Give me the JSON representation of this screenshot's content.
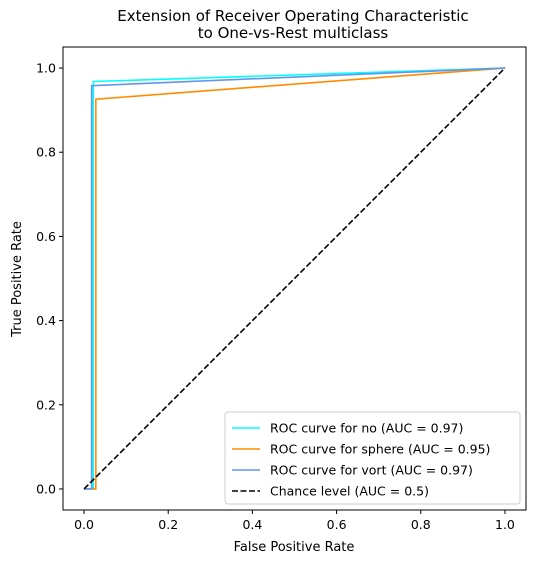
{
  "chart_data": {
    "type": "line",
    "title_line1": "Extension of Receiver Operating Characteristic",
    "title_line2": "to One-vs-Rest multiclass",
    "xlabel": "False Positive Rate",
    "ylabel": "True Positive Rate",
    "xlim": [
      -0.05,
      1.05
    ],
    "ylim": [
      -0.05,
      1.05
    ],
    "xticks": [
      0.0,
      0.2,
      0.4,
      0.6,
      0.8,
      1.0
    ],
    "yticks": [
      0.0,
      0.2,
      0.4,
      0.6,
      0.8,
      1.0
    ],
    "xtick_labels": [
      "0.0",
      "0.2",
      "0.4",
      "0.6",
      "0.8",
      "1.0"
    ],
    "ytick_labels": [
      "0.0",
      "0.2",
      "0.4",
      "0.6",
      "0.8",
      "1.0"
    ],
    "grid": false,
    "legend_position": "lower-right",
    "series": [
      {
        "name": "ROC curve for no (AUC = 0.97)",
        "color": "#00ffff",
        "dash": "solid",
        "x": [
          0.0,
          0.022,
          0.022,
          1.0
        ],
        "y": [
          0.0,
          0.0,
          0.968,
          1.0
        ]
      },
      {
        "name": "ROC curve for sphere (AUC = 0.95)",
        "color": "#ff8c00",
        "dash": "solid",
        "x": [
          0.0,
          0.028,
          0.028,
          1.0
        ],
        "y": [
          0.0,
          0.0,
          0.926,
          1.0
        ]
      },
      {
        "name": "ROC curve for vort (AUC = 0.97)",
        "color": "#6495ed",
        "dash": "solid",
        "x": [
          0.0,
          0.018,
          0.018,
          1.0
        ],
        "y": [
          0.0,
          0.0,
          0.958,
          1.0
        ]
      },
      {
        "name": "Chance level (AUC = 0.5)",
        "color": "#000000",
        "dash": "dashed",
        "x": [
          0.0,
          1.0
        ],
        "y": [
          0.0,
          1.0
        ]
      }
    ]
  }
}
